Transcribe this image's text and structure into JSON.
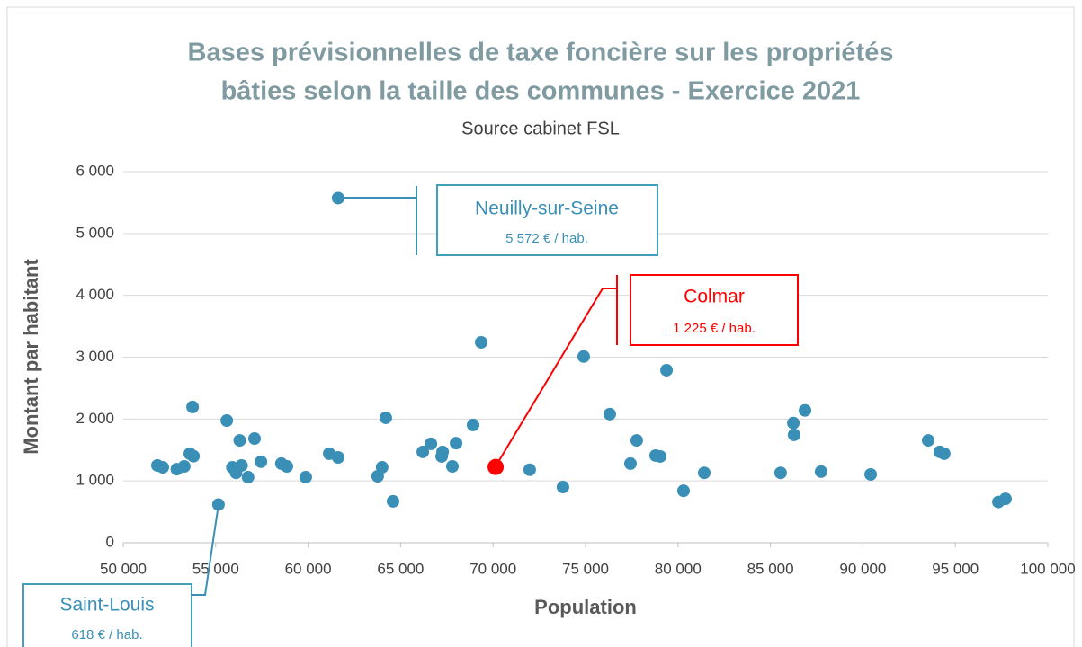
{
  "chart_data": {
    "type": "scatter",
    "title": [
      "Bases prévisionnelles de taxe foncière sur les propriétés",
      "bâties selon la taille des communes - Exercice 2021"
    ],
    "subtitle": "Source cabinet FSL",
    "x_label": "Population",
    "y_label": "Montant par habitant",
    "xlim": [
      50000,
      100000
    ],
    "ylim": [
      0,
      6000
    ],
    "xticks": [
      {
        "value": 50000,
        "label": "50 000"
      },
      {
        "value": 55000,
        "label": "55 000"
      },
      {
        "value": 60000,
        "label": "60 000"
      },
      {
        "value": 65000,
        "label": "65 000"
      },
      {
        "value": 70000,
        "label": "70 000"
      },
      {
        "value": 75000,
        "label": "75 000"
      },
      {
        "value": 80000,
        "label": "80 000"
      },
      {
        "value": 85000,
        "label": "85 000"
      },
      {
        "value": 90000,
        "label": "90 000"
      },
      {
        "value": 95000,
        "label": "95 000"
      },
      {
        "value": 100000,
        "label": "100 000"
      }
    ],
    "yticks": [
      0,
      {
        "value": 1000,
        "label": "1 000"
      },
      {
        "value": 2000,
        "label": "2 000"
      },
      {
        "value": 3000,
        "label": "3 000"
      },
      {
        "value": 4000,
        "label": "4 000"
      },
      {
        "value": 5000,
        "label": "5 000"
      },
      {
        "value": 6000,
        "label": "6 000"
      }
    ],
    "grid": true,
    "series": [
      {
        "color": "#3a8fb7",
        "x": [
          51850,
          52140,
          52900,
          53300,
          53600,
          53800,
          53750,
          55150,
          55600,
          55900,
          56100,
          56400,
          56300,
          56750,
          57100,
          57450,
          58550,
          58850,
          59870,
          61140,
          61620,
          61620,
          63760,
          64000,
          64200,
          64590,
          66200,
          66640,
          67220,
          67270,
          67800,
          68000,
          68920,
          69360,
          71980,
          73780,
          74900,
          76310,
          77430,
          77770,
          78790,
          79040,
          79380,
          80300,
          81420,
          85550,
          86240,
          86280,
          86870,
          87740,
          90420,
          93530,
          94160,
          94400,
          97330,
          97710
        ],
        "values": [
          1250,
          1220,
          1190,
          1235,
          1440,
          1400,
          2195,
          618,
          1975,
          1220,
          1130,
          1250,
          1655,
          1060,
          1685,
          1310,
          1280,
          1235,
          1060,
          1440,
          1380,
          5572,
          1075,
          1220,
          2020,
          670,
          1470,
          1600,
          1395,
          1470,
          1235,
          1610,
          1905,
          3240,
          1180,
          900,
          3010,
          2080,
          1280,
          1655,
          1410,
          1395,
          2790,
          840,
          1130,
          1130,
          1935,
          1745,
          2140,
          1150,
          1105,
          1655,
          1470,
          1440,
          660,
          710
        ]
      },
      {
        "color": "#ff0000",
        "x": [
          70140
        ],
        "values": [
          1225
        ]
      }
    ],
    "annotations": [
      {
        "title": "Neuilly-sur-Seine",
        "text": "5 572 € / hab."
      },
      {
        "title": "Colmar",
        "text": "1 225 € / hab."
      },
      {
        "title": "Saint-Louis",
        "text": "618 € / hab."
      }
    ]
  }
}
